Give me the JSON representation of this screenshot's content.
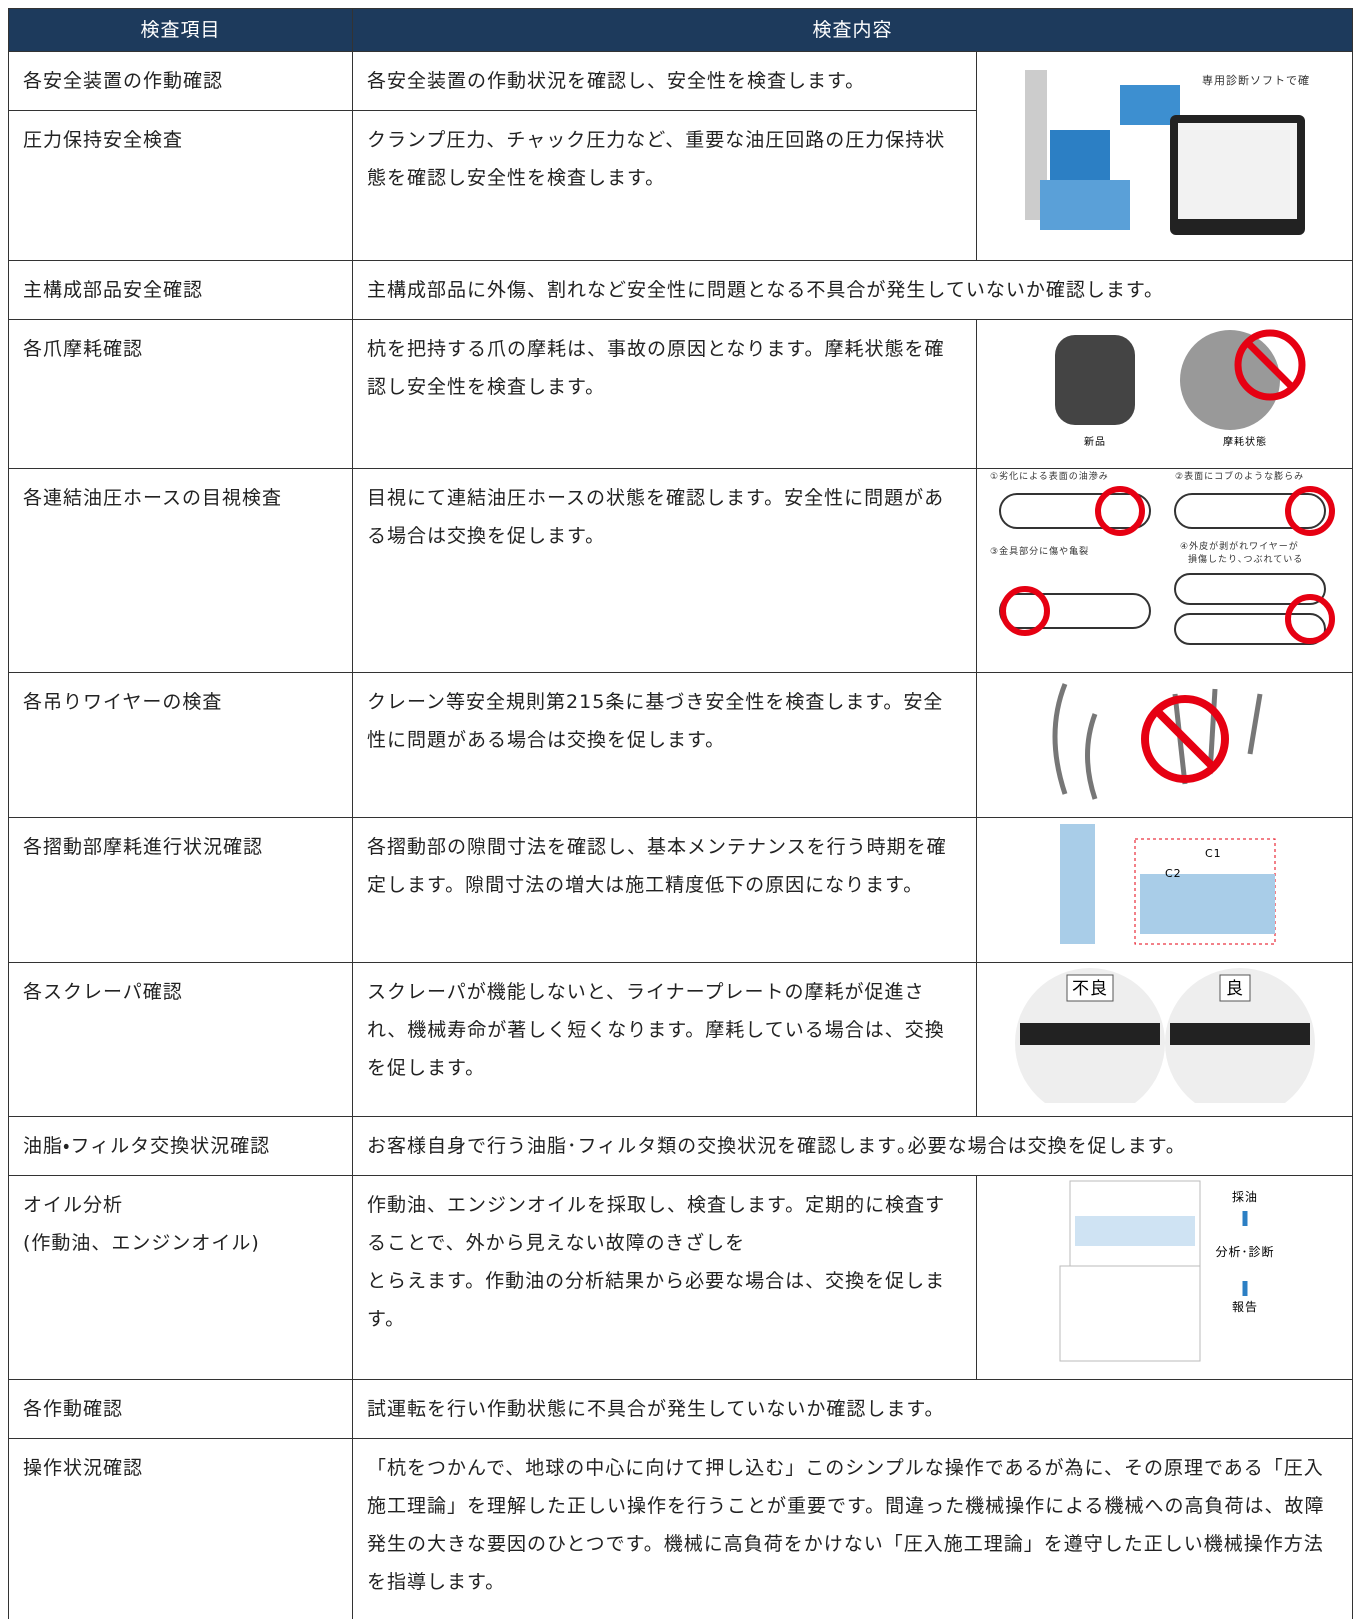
{
  "header": {
    "columns": [
      "検査項目",
      "検査内容"
    ]
  },
  "rows": [
    {
      "item": "各安全装置の作動確認",
      "content": "各安全装置の作動状況を確認し、安全性を検査します。"
    },
    {
      "item": "圧力保持安全検査",
      "content": "クランプ圧力、チャック圧力など、重要な油圧回路の圧力保持状態を確認し安全性を検査します。"
    },
    {
      "item": "主構成部品安全確認",
      "content": "主構成部品に外傷、割れなど安全性に問題となる不具合が発生していないか確認します。"
    },
    {
      "item": "各爪摩耗確認",
      "content": "杭を把持する爪の摩耗は、事故の原因となります。摩耗状態を確認し安全性を検査します。"
    },
    {
      "item": "各連結油圧ホースの目視検査",
      "content": "目視にて連結油圧ホースの状態を確認します。安全性に問題がある場合は交換を促します。"
    },
    {
      "item": "各吊りワイヤーの検査",
      "content": "クレーン等安全規則第215条に基づき安全性を検査します。安全性に問題がある場合は交換を促します。"
    },
    {
      "item": "各摺動部摩耗進行状況確認",
      "content": "各摺動部の隙間寸法を確認し、基本メンテナンスを行う時期を確定します。隙間寸法の増大は施工精度低下の原因になります。"
    },
    {
      "item": "各スクレーパ確認",
      "content": "スクレーパが機能しないと、ライナープレートの摩耗が促進され、機械寿命が著しく短くなります。摩耗している場合は、交換を促します。"
    },
    {
      "item": "油脂・フィルタ交換状況確認",
      "content": "お客様自身で行う油脂･フィルタ類の交換状況を確認します｡必要な場合は交換を促します。"
    },
    {
      "item": "オイル分析",
      "item_note": "(作動油、エンジンオイル)",
      "content": "作動油、エンジンオイルを採取し、検査します。定期的に検査することで、外から見えない故障のきざしを\nとらえます。作動油の分析結果から必要な場合は、交換を促します。"
    },
    {
      "item": "各作動確認",
      "content": "試運転を行い作動状態に不具合が発生していないか確認します。"
    },
    {
      "item": "操作状況確認",
      "content": "「杭をつかんで、地球の中心に向けて押し込む」このシンプルな操作であるが為に、その原理である「圧入施工理論」を理解した正しい操作を行うことが重要です。間違った機械操作による機械への高負荷は、故障発生の大きな要因のひとつです。機械に高負荷をかけない「圧入施工理論」を遵守した正しい機械操作方法を指導します。"
    }
  ],
  "images": {
    "diagnosis": [
      "専用診断ソフトで確認"
    ],
    "claw": [
      "新品",
      "摩耗状態"
    ],
    "hose": [
      "①劣化による表面の油滲み",
      "②表面にコブのような膨らみ",
      "③金具部分に傷や亀裂",
      "④外皮が剥がれワイヤーが",
      "損傷したり､つぶれている"
    ],
    "slide": [
      "C1",
      "C2"
    ],
    "scraper": [
      "不良",
      "良"
    ],
    "oil": [
      "採油",
      "分析･診断",
      "報告"
    ]
  }
}
